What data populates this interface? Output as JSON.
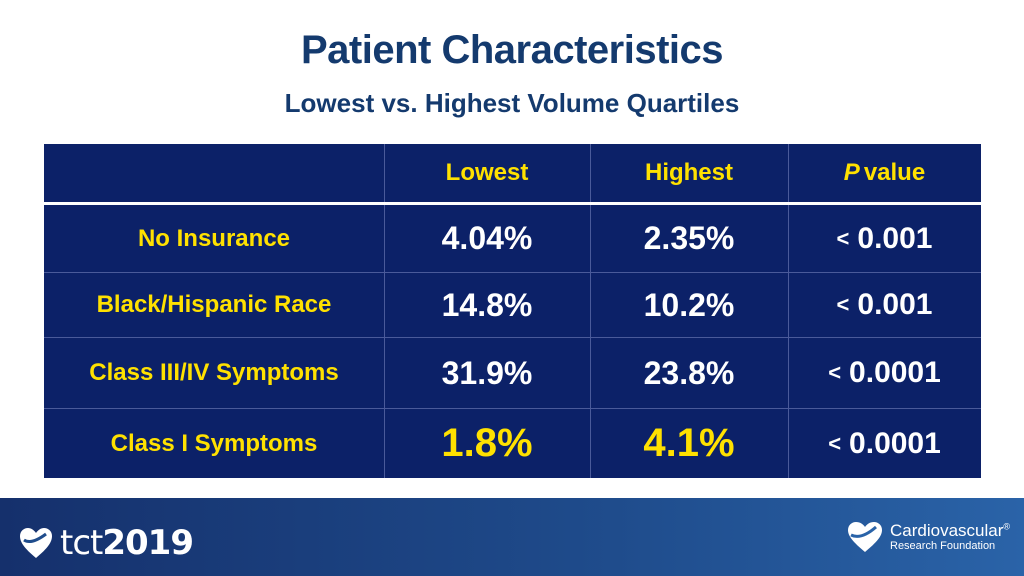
{
  "slide": {
    "title": "Patient Characteristics",
    "subtitle": "Lowest vs. Highest Volume Quartiles"
  },
  "table": {
    "headers": {
      "col1": "Lowest",
      "col2": "Highest",
      "col3_italic": "P",
      "col3_rest": "value"
    },
    "rows": [
      {
        "label": "No Insurance",
        "lowest": "4.04%",
        "highest": "2.35%",
        "p_sign": "<",
        "p_value": "0.001"
      },
      {
        "label": "Black/Hispanic Race",
        "lowest": "14.8%",
        "highest": "10.2%",
        "p_sign": "<",
        "p_value": "0.001"
      },
      {
        "label": "Class III/IV Symptoms",
        "lowest": "31.9%",
        "highest": "23.8%",
        "p_sign": "<",
        "p_value": "0.0001"
      },
      {
        "label": "Class I Symptoms",
        "lowest": "1.8%",
        "highest": "4.1%",
        "p_sign": "<",
        "p_value": "0.0001"
      }
    ],
    "colors": {
      "background": "#0c2168",
      "label_text": "#ffe100",
      "value_text": "#ffffff",
      "highlight_text": "#ffe100"
    }
  },
  "footer": {
    "tct_logo": {
      "brand": "tct",
      "year": "2019",
      "icon": "heart-icon"
    },
    "crf_logo": {
      "line1": "Cardiovascular",
      "registered": "®",
      "line2": "Research Foundation",
      "icon": "heart-icon"
    }
  }
}
